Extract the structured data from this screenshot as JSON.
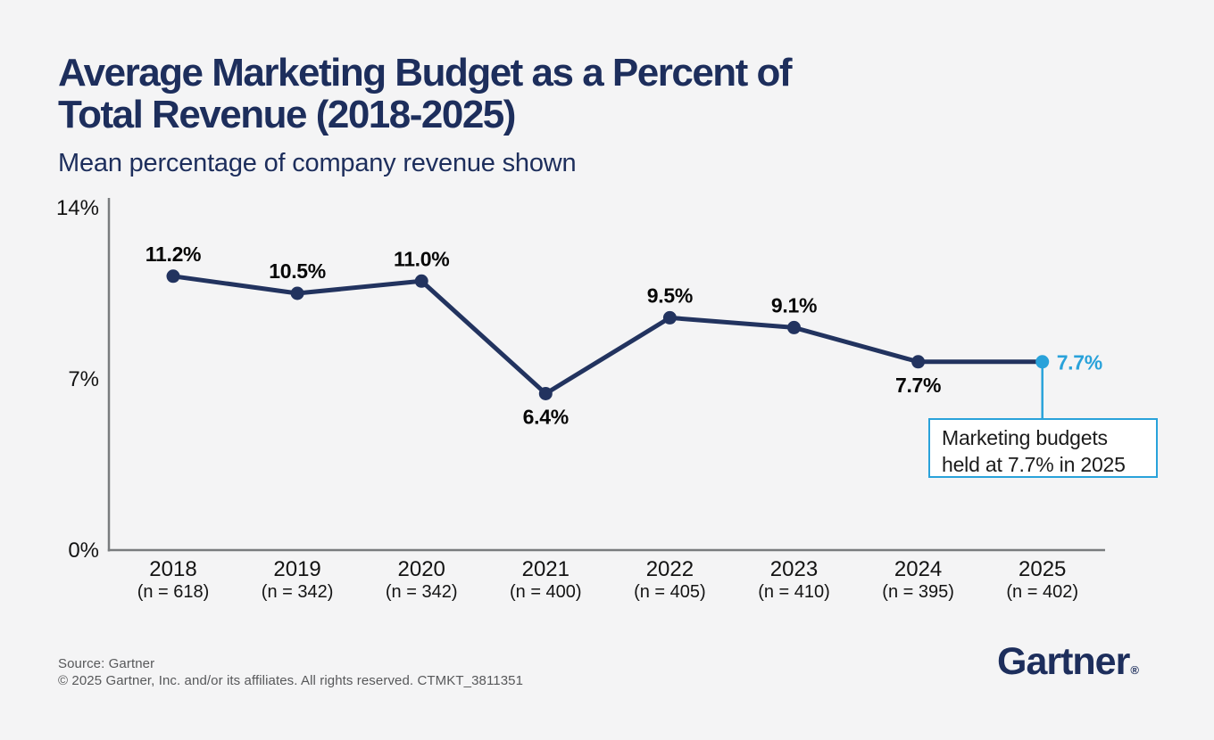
{
  "header": {
    "title_line1": "Average Marketing Budget as a Percent of",
    "title_line2": "Total Revenue (2018-2025)",
    "subtitle": "Mean percentage of company revenue shown"
  },
  "chart_data": {
    "type": "line",
    "title": "Average Marketing Budget as a Percent of Total Revenue (2018-2025)",
    "subtitle": "Mean percentage of company revenue shown",
    "categories": [
      "2018",
      "2019",
      "2020",
      "2021",
      "2022",
      "2023",
      "2024",
      "2025"
    ],
    "sample_sizes": [
      "(n = 618)",
      "(n = 342)",
      "(n = 342)",
      "(n = 400)",
      "(n = 405)",
      "(n = 410)",
      "(n = 395)",
      "(n = 402)"
    ],
    "values": [
      11.2,
      10.5,
      11.0,
      6.4,
      9.5,
      9.1,
      7.7,
      7.7
    ],
    "labels": [
      "11.2%",
      "10.5%",
      "11.0%",
      "6.4%",
      "9.5%",
      "9.1%",
      "7.7%",
      "7.7%"
    ],
    "label_positions": [
      "above",
      "above",
      "above",
      "below",
      "above",
      "above",
      "below",
      "right"
    ],
    "highlight_index": 7,
    "xlabel": "",
    "ylabel": "",
    "ylim": [
      0,
      14
    ],
    "yticks": [
      0,
      7,
      14
    ],
    "ytick_labels": [
      "0%",
      "7%",
      "14%"
    ],
    "grid": false,
    "legend": false,
    "annotation": {
      "line1": "Marketing budgets",
      "line2": "held at 7.7% in 2025",
      "target_category": "2025"
    },
    "colors": {
      "line": "#22335f",
      "point": "#22335f",
      "highlight": "#29a2da",
      "label": "#070707",
      "axis": "#797c7e"
    }
  },
  "footer": {
    "source": "Source: Gartner",
    "copyright": "© 2025 Gartner, Inc. and/or its affiliates. All rights reserved. CTMKT_3811351",
    "logo_text": "Gartner",
    "logo_reg": "®"
  }
}
